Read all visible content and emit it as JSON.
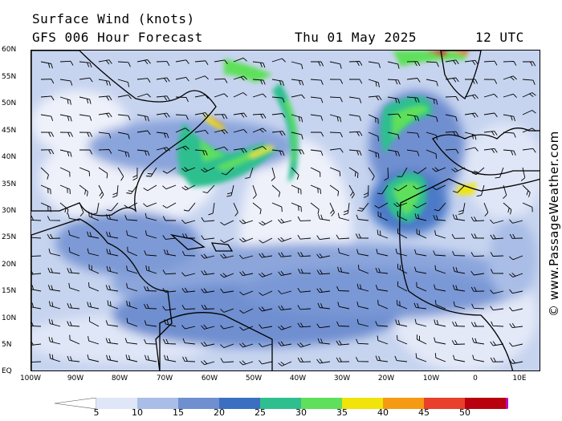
{
  "header": {
    "title": "Surface Wind (knots)",
    "model": "GFS 006 Hour Forecast",
    "date": "Thu 01 May 2025",
    "time": "12 UTC"
  },
  "credit": "© www.PassageWeather.com",
  "lat_labels": [
    "60N",
    "55N",
    "50N",
    "45N",
    "40N",
    "35N",
    "30N",
    "25N",
    "20N",
    "15N",
    "10N",
    "5N",
    "EQ"
  ],
  "lon_labels": [
    "100W",
    "90W",
    "80W",
    "70W",
    "60W",
    "50W",
    "40W",
    "30W",
    "20W",
    "10W",
    "0",
    "10E"
  ],
  "legend": {
    "levels": [
      "5",
      "10",
      "15",
      "20",
      "25",
      "30",
      "35",
      "40",
      "45",
      "50"
    ],
    "colors": [
      "#ffffff",
      "#dfe6f7",
      "#a9bde6",
      "#6f8fd0",
      "#3b6fc2",
      "#2fbf8f",
      "#5ee05a",
      "#f0e40a",
      "#f59a12",
      "#e8402a",
      "#b8000e",
      "#c000c0"
    ]
  },
  "map": {
    "region": "North Atlantic",
    "lat_range": [
      "EQ",
      "60N"
    ],
    "lon_range": [
      "100W",
      "10E"
    ]
  }
}
